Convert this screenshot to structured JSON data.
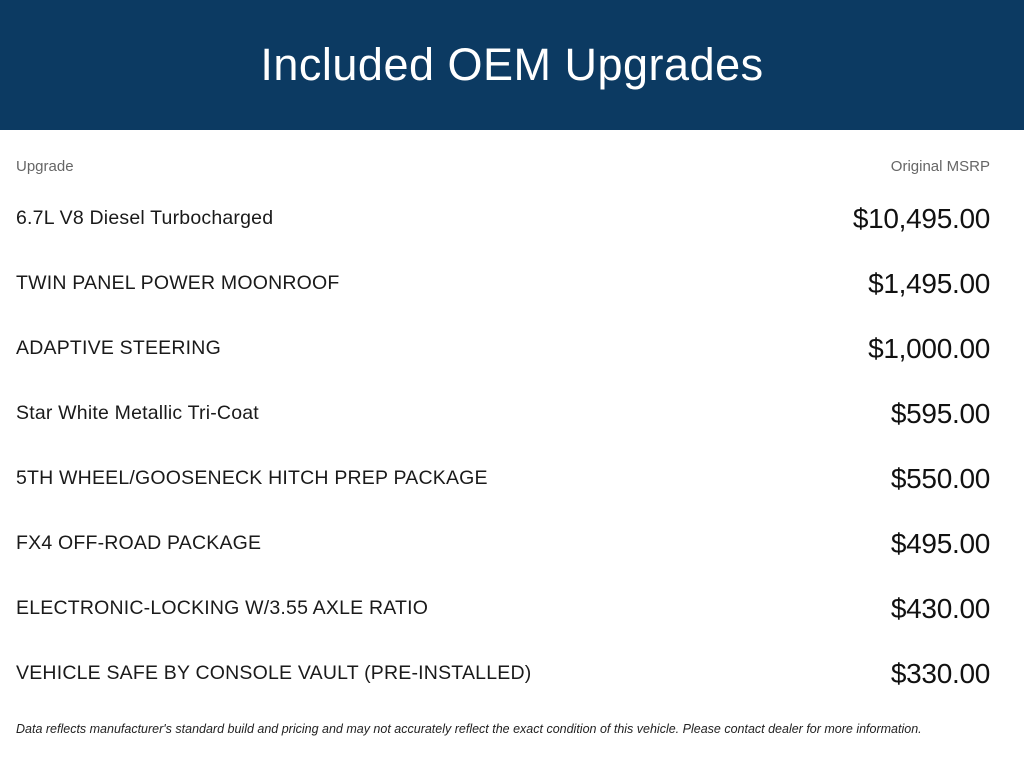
{
  "header": {
    "title": "Included OEM Upgrades",
    "bg_color": "#0c3a62",
    "text_color": "#ffffff"
  },
  "table": {
    "columns": [
      "Upgrade",
      "Original MSRP"
    ],
    "rows": [
      {
        "upgrade": "6.7L V8 Diesel Turbocharged",
        "msrp": "$10,495.00"
      },
      {
        "upgrade": "TWIN PANEL POWER MOONROOF",
        "msrp": "$1,495.00"
      },
      {
        "upgrade": "ADAPTIVE STEERING",
        "msrp": "$1,000.00"
      },
      {
        "upgrade": "Star White Metallic Tri-Coat",
        "msrp": "$595.00"
      },
      {
        "upgrade": "5TH WHEEL/GOOSENECK HITCH PREP PACKAGE",
        "msrp": "$550.00"
      },
      {
        "upgrade": "FX4 OFF-ROAD PACKAGE",
        "msrp": "$495.00"
      },
      {
        "upgrade": "ELECTRONIC-LOCKING W/3.55 AXLE RATIO",
        "msrp": "$430.00"
      },
      {
        "upgrade": "VEHICLE SAFE BY CONSOLE VAULT (PRE-INSTALLED)",
        "msrp": "$330.00"
      }
    ]
  },
  "footer": {
    "disclaimer": "Data reflects manufacturer's standard build and pricing and may not accurately reflect the exact condition of this vehicle. Please contact dealer for more information."
  }
}
